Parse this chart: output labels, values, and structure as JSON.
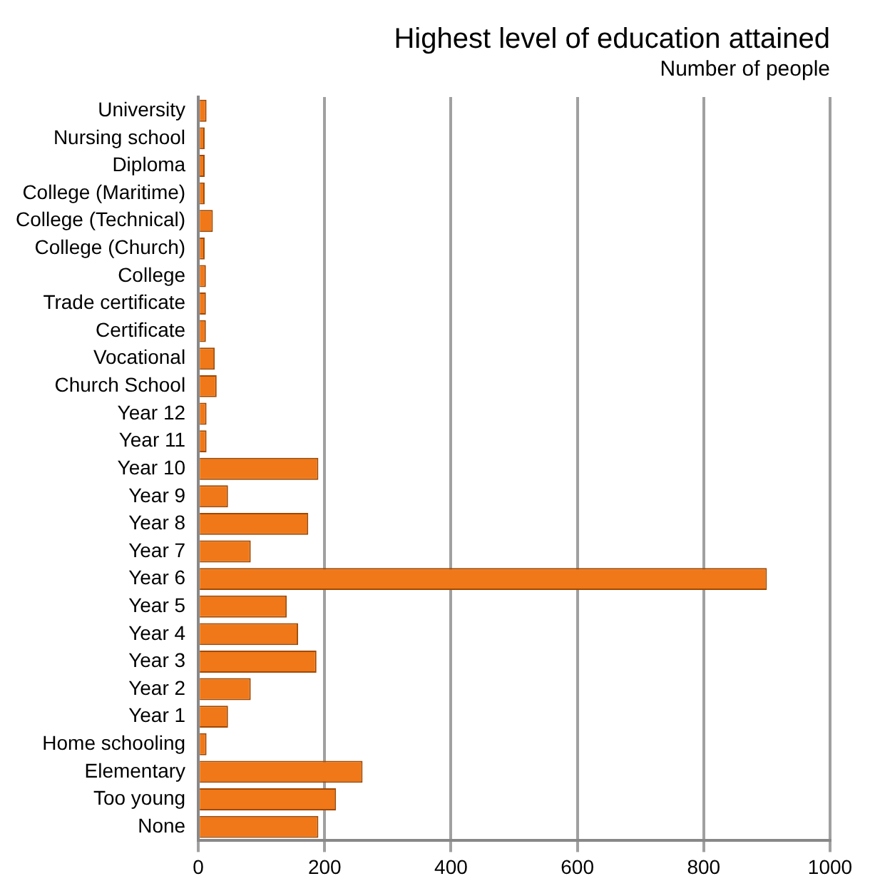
{
  "chart_data": {
    "type": "bar",
    "orientation": "horizontal",
    "title": "Highest level of education attained",
    "subtitle": "Number of people",
    "categories": [
      "University",
      "Nursing school",
      "Diploma",
      "College (Maritime)",
      "College (Technical)",
      "College (Church)",
      "College",
      "Trade certificate",
      "Certificate",
      "Vocational",
      "Church School",
      "Year 12",
      "Year 11",
      "Year 10",
      "Year 9",
      "Year 8",
      "Year 7",
      "Year 6",
      "Year 5",
      "Year 4",
      "Year 3",
      "Year 2",
      "Year 1",
      "Home schooling",
      "Elementary",
      "Too young",
      "None"
    ],
    "values": [
      13,
      10,
      10,
      10,
      23,
      10,
      12,
      12,
      12,
      26,
      29,
      13,
      13,
      190,
      47,
      174,
      83,
      900,
      140,
      158,
      187,
      83,
      47,
      13,
      260,
      218,
      190
    ],
    "color": "#f07818",
    "xlim": [
      0,
      1000
    ],
    "xticks": [
      0,
      200,
      400,
      600,
      800,
      1000
    ],
    "grid": "x",
    "legend": false
  }
}
